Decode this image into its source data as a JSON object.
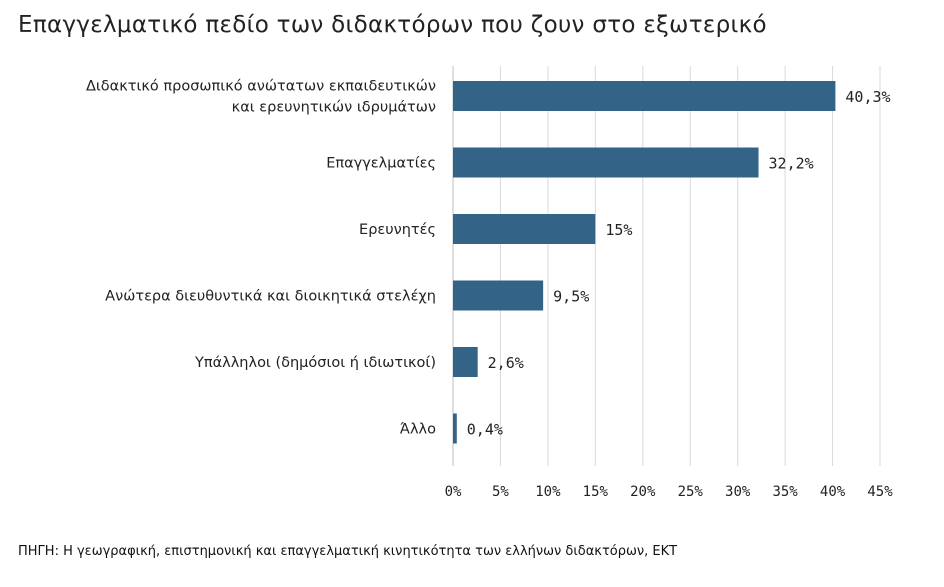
{
  "title": "Επαγγελματικό πεδίο των διδακτόρων που ζουν στο εξωτερικό",
  "source": "ΠΗΓΗ: Η γεωγραφική, επιστημονική και επαγγελματική κινητικότητα των ελλήνων διδακτόρων, ΕΚΤ",
  "colors": {
    "bar": "#336387",
    "grid": "#d9d9d9",
    "axis": "#bfbfbf"
  },
  "chart_data": {
    "type": "bar",
    "orientation": "horizontal",
    "title": "Επαγγελματικό πεδίο των διδακτόρων που ζουν στο εξωτερικό",
    "categories": [
      [
        "Διδακτικό προσωπικό ανώτατων εκπαιδευτικών",
        "και ερευνητικών ιδρυμάτων"
      ],
      [
        "Επαγγελματίες"
      ],
      [
        "Ερευνητές"
      ],
      [
        "Ανώτερα διευθυντικά και διοικητικά στελέχη"
      ],
      [
        "Υπάλληλοι (δημόσιοι ή ιδιωτικοί)"
      ],
      [
        "Άλλο"
      ]
    ],
    "values": [
      40.3,
      32.2,
      15,
      9.5,
      2.6,
      0.4
    ],
    "value_labels": [
      "40,3%",
      "32,2%",
      "15%",
      "9,5%",
      "2,6%",
      "0,4%"
    ],
    "xlim": [
      0,
      45
    ],
    "xticks": [
      0,
      5,
      10,
      15,
      20,
      25,
      30,
      35,
      40,
      45
    ],
    "xtick_labels": [
      "0%",
      "5%",
      "10%",
      "15%",
      "20%",
      "25%",
      "30%",
      "35%",
      "40%",
      "45%"
    ],
    "grid": true,
    "legend": "none"
  }
}
